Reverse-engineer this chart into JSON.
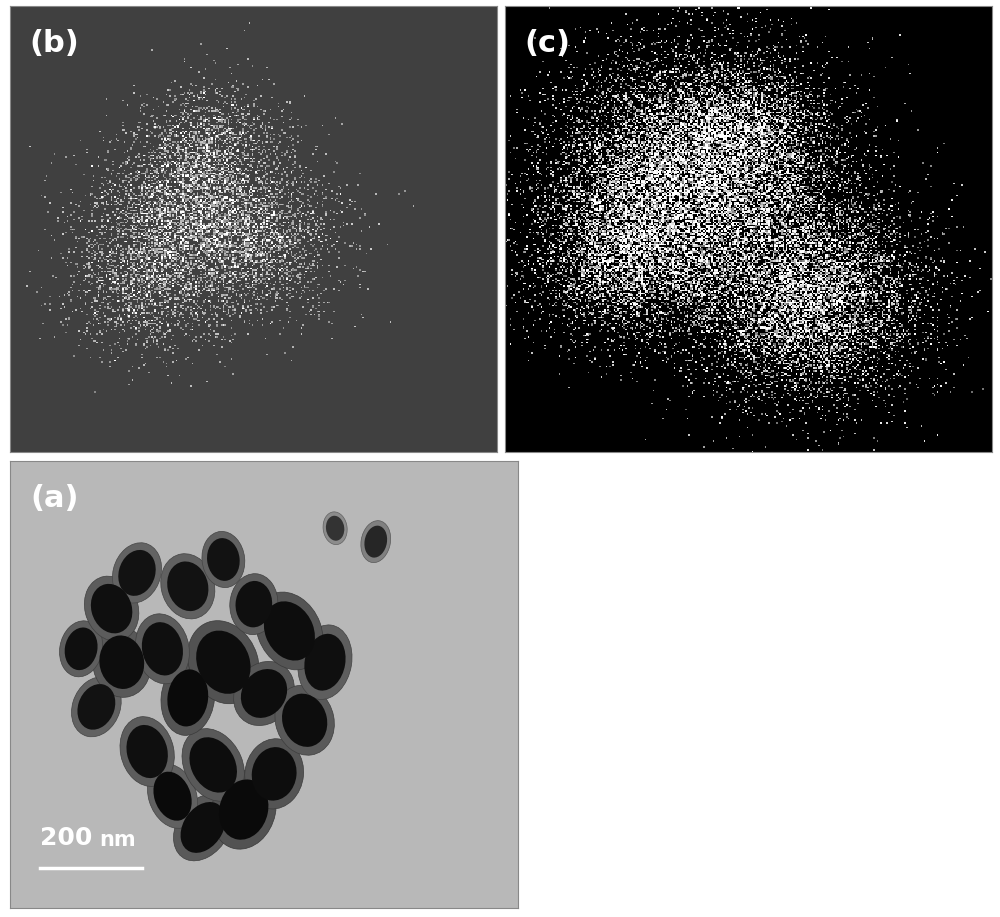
{
  "fig_width": 10.0,
  "fig_height": 9.17,
  "dpi": 100,
  "bg_color": "#ffffff",
  "panel_b": {
    "label": "(b)",
    "bg_gray": 0.25,
    "dot_brightness": 0.55,
    "seed": 42,
    "n_dots": 8000
  },
  "panel_c": {
    "label": "(c)",
    "bg_gray": 0.0,
    "dot_brightness": 1.0,
    "seed": 7,
    "n_dots": 25000
  },
  "panel_a": {
    "label": "(a)",
    "bg_gray": 0.72,
    "seed": 99
  },
  "label_fontsize": 22,
  "label_color": "#ffffff",
  "label_fontweight": "bold",
  "scalebar_text1": "200",
  "scalebar_text2": "nm"
}
